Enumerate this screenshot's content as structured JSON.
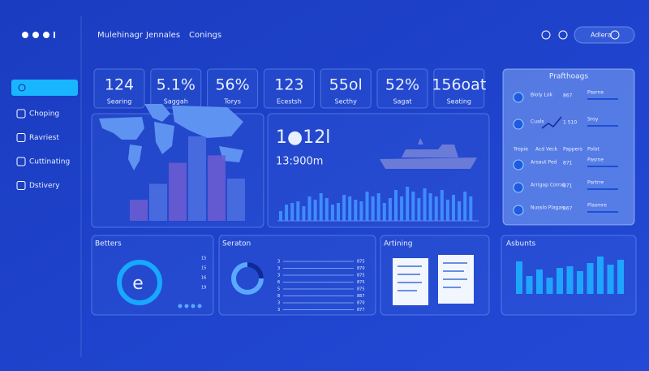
{
  "header": {
    "nav": [
      "Mulehinagr",
      "Jennales",
      "Conings"
    ],
    "user": "Adlera"
  },
  "sidebar": {
    "items": [
      "Choping",
      "Ravriest",
      "Cuttinating",
      "Dstivery"
    ]
  },
  "kpis": [
    {
      "value": "124",
      "label": "Searing"
    },
    {
      "value": "5.1%",
      "label": "Saggah"
    },
    {
      "value": "56%",
      "label": "Torys"
    },
    {
      "value": "123",
      "label": "Ecestsh"
    },
    {
      "value": "55ol",
      "label": "Secthy"
    },
    {
      "value": "52%",
      "label": "Sagat"
    },
    {
      "value": "156oat",
      "label": "Seating"
    }
  ],
  "map_panel": {
    "bars": [
      20,
      35,
      55,
      80,
      62,
      40
    ]
  },
  "center_panel": {
    "headline": "1●12l",
    "subline": "13:900m",
    "bars": [
      12,
      20,
      22,
      24,
      18,
      30,
      26,
      34,
      28,
      20,
      22,
      32,
      30,
      26,
      24,
      36,
      30,
      34,
      22,
      28,
      38,
      30,
      42,
      36,
      28,
      40,
      34,
      30,
      38,
      26,
      32,
      24,
      36,
      30
    ]
  },
  "side_panel": {
    "title": "Prafthoags",
    "rows": [
      {
        "name": "Bioly Lok",
        "value": "867",
        "tag": "Pasrne"
      },
      {
        "name": "Cuals",
        "value": "1 510",
        "tag": "Sroy"
      },
      {
        "name": "Arsaut Ped",
        "value": "871",
        "tag": "Pasrne"
      },
      {
        "name": "Arrigap Corrat",
        "value": "871",
        "tag": "Partrre"
      },
      {
        "name": "Nusslo Plagas",
        "value": "867",
        "tag": "Plasmre"
      }
    ],
    "columns": [
      "Tropie",
      "Acd Veck",
      "Pappers",
      "Polot"
    ]
  },
  "bottom": {
    "betters": {
      "title": "Betters",
      "numbers": [
        "15",
        "15",
        "16",
        "19"
      ]
    },
    "seraton": {
      "title": "Seraton",
      "left": [
        "3",
        "3",
        "3",
        "6",
        "5",
        "8",
        "3",
        "3"
      ],
      "right": [
        "875",
        "870",
        "875",
        "875",
        "875",
        "887",
        "870",
        "877"
      ]
    },
    "artining": {
      "title": "Artining"
    },
    "asbunts": {
      "title": "Asbunts",
      "bars": [
        40,
        22,
        30,
        20,
        32,
        34,
        28,
        38,
        46,
        36,
        42
      ]
    }
  }
}
